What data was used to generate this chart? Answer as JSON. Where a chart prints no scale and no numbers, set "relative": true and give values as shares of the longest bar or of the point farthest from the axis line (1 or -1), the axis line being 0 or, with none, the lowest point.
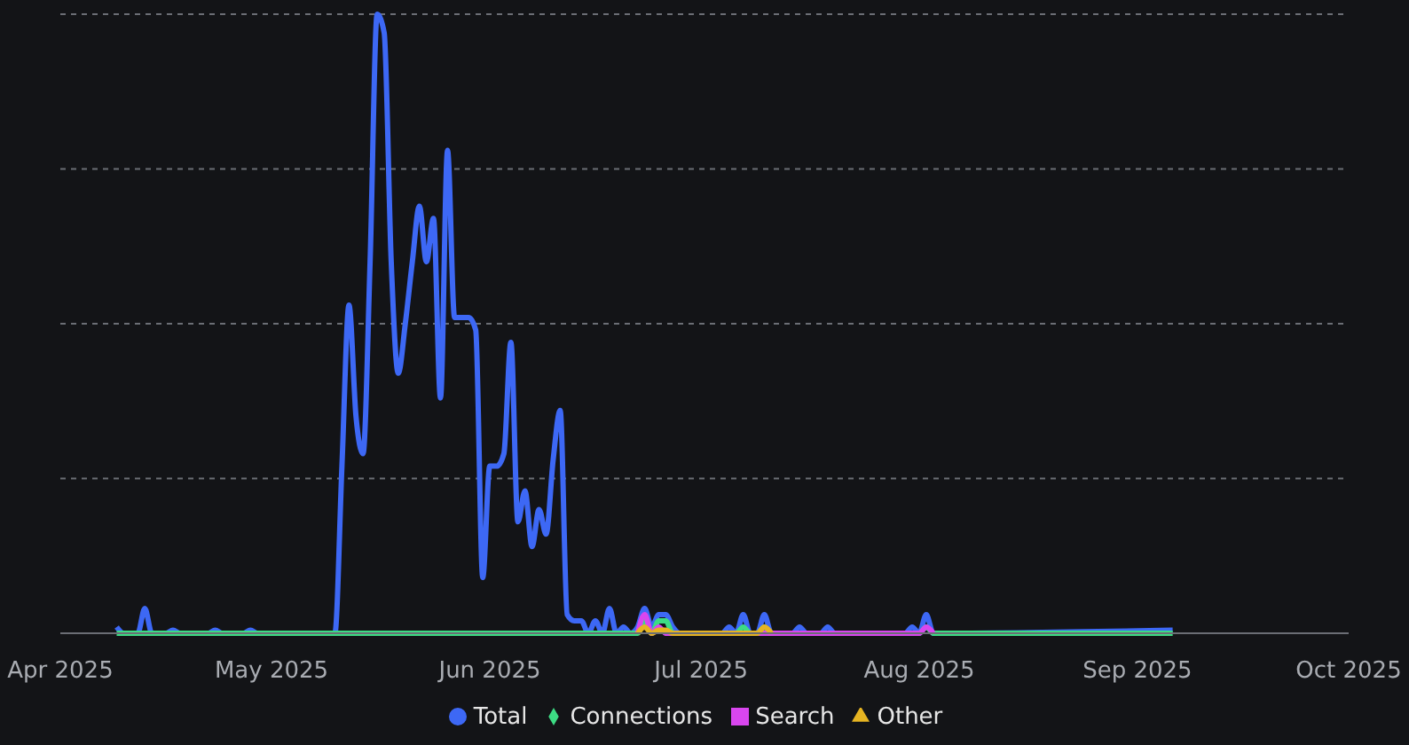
{
  "chart_data": {
    "type": "line",
    "relative": true,
    "grid": "y",
    "legend": "bottom",
    "line_style": "solid",
    "marker": "none",
    "xlim": [
      "2025-04-01",
      "2025-10-01"
    ],
    "xticks": [
      {
        "value": "2025-04-01",
        "label": "Apr 2025"
      },
      {
        "value": "2025-05-01",
        "label": "May 2025"
      },
      {
        "value": "2025-06-01",
        "label": "Jun 2025"
      },
      {
        "value": "2025-07-01",
        "label": "Jul 2025"
      },
      {
        "value": "2025-08-01",
        "label": "Aug 2025"
      },
      {
        "value": "2025-09-01",
        "label": "Sep 2025"
      },
      {
        "value": "2025-10-01",
        "label": "Oct 2025"
      }
    ],
    "series": [
      {
        "name": "Total",
        "color": "#3d68f5",
        "x": [
          "2025-04-09",
          "2025-04-10",
          "2025-04-12",
          "2025-04-13",
          "2025-04-14",
          "2025-04-16",
          "2025-04-17",
          "2025-04-18",
          "2025-04-22",
          "2025-04-23",
          "2025-04-24",
          "2025-04-27",
          "2025-04-28",
          "2025-04-29",
          "2025-05-10",
          "2025-05-11",
          "2025-05-12",
          "2025-05-13",
          "2025-05-14",
          "2025-05-15",
          "2025-05-16",
          "2025-05-17",
          "2025-05-18",
          "2025-05-19",
          "2025-05-20",
          "2025-05-21",
          "2025-05-22",
          "2025-05-23",
          "2025-05-24",
          "2025-05-25",
          "2025-05-26",
          "2025-05-27",
          "2025-05-28",
          "2025-05-29",
          "2025-05-30",
          "2025-05-31",
          "2025-06-01",
          "2025-06-02",
          "2025-06-03",
          "2025-06-04",
          "2025-06-05",
          "2025-06-06",
          "2025-06-07",
          "2025-06-08",
          "2025-06-09",
          "2025-06-10",
          "2025-06-11",
          "2025-06-12",
          "2025-06-13",
          "2025-06-14",
          "2025-06-15",
          "2025-06-16",
          "2025-06-17",
          "2025-06-18",
          "2025-06-19",
          "2025-06-20",
          "2025-06-21",
          "2025-06-22",
          "2025-06-23",
          "2025-06-24",
          "2025-06-25",
          "2025-06-26",
          "2025-06-27",
          "2025-06-28",
          "2025-07-04",
          "2025-07-05",
          "2025-07-06",
          "2025-07-07",
          "2025-07-08",
          "2025-07-09",
          "2025-07-10",
          "2025-07-11",
          "2025-07-14",
          "2025-07-15",
          "2025-07-16",
          "2025-07-18",
          "2025-07-19",
          "2025-07-20",
          "2025-07-30",
          "2025-07-31",
          "2025-08-01",
          "2025-08-02",
          "2025-08-03",
          "2025-09-06"
        ],
        "values": [
          0.01,
          0,
          0,
          0.04,
          0,
          0,
          0.005,
          0,
          0,
          0.005,
          0,
          0,
          0.005,
          0,
          0,
          0.27,
          0.53,
          0.35,
          0.29,
          0.6,
          1.0,
          0.97,
          0.6,
          0.42,
          0.5,
          0.6,
          0.69,
          0.6,
          0.67,
          0.38,
          0.78,
          0.51,
          0.51,
          0.51,
          0.49,
          0.09,
          0.27,
          0.27,
          0.29,
          0.47,
          0.18,
          0.23,
          0.14,
          0.2,
          0.16,
          0.28,
          0.36,
          0.03,
          0.02,
          0.02,
          0,
          0.02,
          0,
          0.04,
          0,
          0.01,
          0,
          0.01,
          0.04,
          0.01,
          0.03,
          0.03,
          0.01,
          0,
          0,
          0.01,
          0,
          0.03,
          0,
          0,
          0.03,
          0,
          0,
          0.01,
          0,
          0,
          0.01,
          0,
          0,
          0.01,
          0,
          0.03,
          0,
          0.005
        ]
      },
      {
        "name": "Connections",
        "color": "#3ddc84",
        "x": [
          "2025-04-09",
          "2025-06-22",
          "2025-06-23",
          "2025-06-24",
          "2025-06-25",
          "2025-06-26",
          "2025-06-27",
          "2025-07-06",
          "2025-07-07",
          "2025-07-08",
          "2025-07-09",
          "2025-07-10",
          "2025-07-11",
          "2025-08-01",
          "2025-08-02",
          "2025-08-03",
          "2025-09-06"
        ],
        "values": [
          0,
          0,
          0.02,
          0,
          0.02,
          0.02,
          0,
          0,
          0.01,
          0,
          0,
          0.01,
          0,
          0,
          0.01,
          0,
          0
        ]
      },
      {
        "name": "Search",
        "color": "#d946ef",
        "x": [
          "2025-06-22",
          "2025-06-23",
          "2025-06-24",
          "2025-06-25",
          "2025-06-26",
          "2025-08-01",
          "2025-08-02",
          "2025-08-03"
        ],
        "values": [
          0,
          0.03,
          0,
          0.01,
          0,
          0,
          0.01,
          0
        ]
      },
      {
        "name": "Other",
        "color": "#e6b422",
        "x": [
          "2025-06-22",
          "2025-06-23",
          "2025-06-24",
          "2025-06-25",
          "2025-06-26",
          "2025-06-27",
          "2025-07-09",
          "2025-07-10",
          "2025-07-11"
        ],
        "values": [
          0,
          0.01,
          0,
          0.005,
          0.005,
          0,
          0,
          0.01,
          0
        ]
      }
    ]
  }
}
